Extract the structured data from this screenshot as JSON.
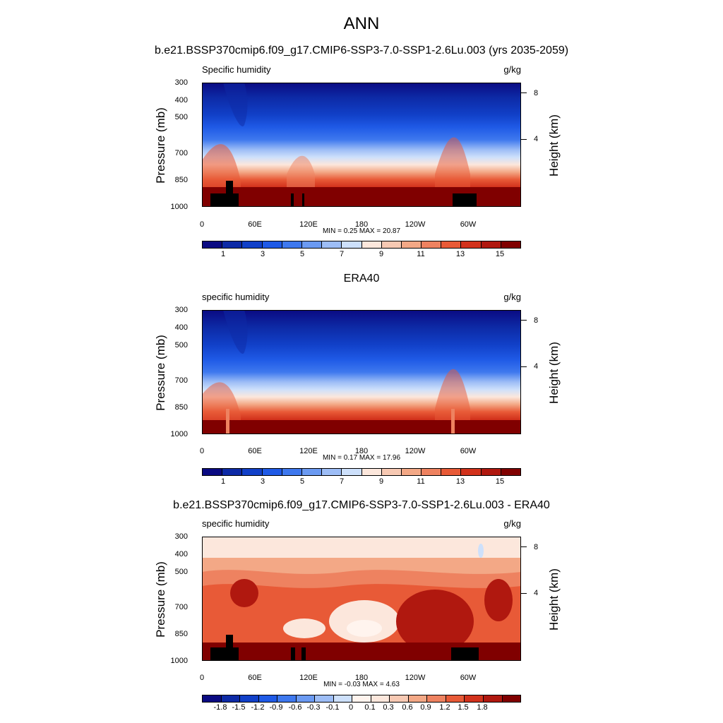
{
  "main_title": "ANN",
  "colors": {
    "abs": [
      "#0a0a82",
      "#0d2aa6",
      "#1140c8",
      "#1f5ae6",
      "#3e78ee",
      "#6b9af2",
      "#9dbdf6",
      "#cde0fb",
      "#fce7dc",
      "#f7c9b3",
      "#f3a886",
      "#ee8260",
      "#e85a37",
      "#d2321c",
      "#b0180f",
      "#800000"
    ],
    "diff": [
      "#0a0a82",
      "#0d2aa6",
      "#1140c8",
      "#1f5ae6",
      "#3e78ee",
      "#6b9af2",
      "#9dbdf6",
      "#cde0fb",
      "#fff4ee",
      "#fce7dc",
      "#f7c9b3",
      "#f3a886",
      "#ee8260",
      "#e85a37",
      "#d2321c",
      "#b0180f",
      "#800000"
    ]
  },
  "panels": [
    {
      "title": "b.e21.BSSP370cmip6.f09_g17.CMIP6-SSP3-7.0-SSP1-2.6Lu.003 (yrs 2035-2059)",
      "left_label": "Specific humidity",
      "right_label": "g/kg",
      "y_title": "Pressure (mb)",
      "y2_title": "Height (km)",
      "minmax": "MIN =   0.25  MAX =  20.87",
      "colorbar_labels": [
        "1",
        "3",
        "5",
        "7",
        "9",
        "11",
        "13",
        "15"
      ]
    },
    {
      "title": "ERA40",
      "left_label": "specific humidity",
      "right_label": "g/kg",
      "y_title": "Pressure (mb)",
      "y2_title": "Height (km)",
      "minmax": "MIN =   0.17  MAX =  17.96",
      "colorbar_labels": [
        "1",
        "3",
        "5",
        "7",
        "9",
        "11",
        "13",
        "15"
      ]
    },
    {
      "title": "b.e21.BSSP370cmip6.f09_g17.CMIP6-SSP3-7.0-SSP1-2.6Lu.003 - ERA40",
      "left_label": "specific humidity",
      "right_label": "g/kg",
      "y_title": "Pressure (mb)",
      "y2_title": "Height (km)",
      "minmax": "MIN =  -0.03  MAX =   4.63",
      "colorbar_labels": [
        "-1.8",
        "-1.5",
        "-1.2",
        "-0.9",
        "-0.6",
        "-0.3",
        "-0.1",
        "0",
        "0.1",
        "0.3",
        "0.6",
        "0.9",
        "1.2",
        "1.5",
        "1.8"
      ]
    }
  ],
  "chart_data": [
    {
      "type": "heatmap",
      "title": "b.e21.BSSP370cmip6.f09_g17.CMIP6-SSP3-7.0-SSP1-2.6Lu.003 (yrs 2035-2059)",
      "variable": "Specific humidity",
      "units": "g/kg",
      "xlabel": "",
      "ylabel": "Pressure (mb)",
      "y2label": "Height (km)",
      "x_ticks": [
        "0",
        "60E",
        "120E",
        "180",
        "120W",
        "60W"
      ],
      "y_ticks": [
        "300",
        "400",
        "500",
        "700",
        "850",
        "1000"
      ],
      "y2_ticks": [
        "8",
        "4"
      ],
      "contour_levels": [
        0,
        1,
        2,
        3,
        4,
        5,
        6,
        7,
        8,
        9,
        10,
        11,
        12,
        13,
        14,
        15
      ],
      "min": 0.25,
      "max": 20.87
    },
    {
      "type": "heatmap",
      "title": "ERA40",
      "variable": "specific humidity",
      "units": "g/kg",
      "xlabel": "",
      "ylabel": "Pressure (mb)",
      "y2label": "Height (km)",
      "x_ticks": [
        "0",
        "60E",
        "120E",
        "180",
        "120W",
        "60W"
      ],
      "y_ticks": [
        "300",
        "400",
        "500",
        "700",
        "850",
        "1000"
      ],
      "y2_ticks": [
        "8",
        "4"
      ],
      "contour_levels": [
        0,
        1,
        2,
        3,
        4,
        5,
        6,
        7,
        8,
        9,
        10,
        11,
        12,
        13,
        14,
        15
      ],
      "min": 0.17,
      "max": 17.96
    },
    {
      "type": "heatmap",
      "title": "b.e21.BSSP370cmip6.f09_g17.CMIP6-SSP3-7.0-SSP1-2.6Lu.003 - ERA40",
      "variable": "specific humidity",
      "units": "g/kg",
      "xlabel": "",
      "ylabel": "Pressure (mb)",
      "y2label": "Height (km)",
      "x_ticks": [
        "0",
        "60E",
        "120E",
        "180",
        "120W",
        "60W"
      ],
      "y_ticks": [
        "300",
        "400",
        "500",
        "700",
        "850",
        "1000"
      ],
      "y2_ticks": [
        "8",
        "4"
      ],
      "contour_levels": [
        -1.8,
        -1.5,
        -1.2,
        -0.9,
        -0.6,
        -0.3,
        -0.1,
        0,
        0.1,
        0.3,
        0.6,
        0.9,
        1.2,
        1.5,
        1.8
      ],
      "min": -0.03,
      "max": 4.63
    }
  ]
}
